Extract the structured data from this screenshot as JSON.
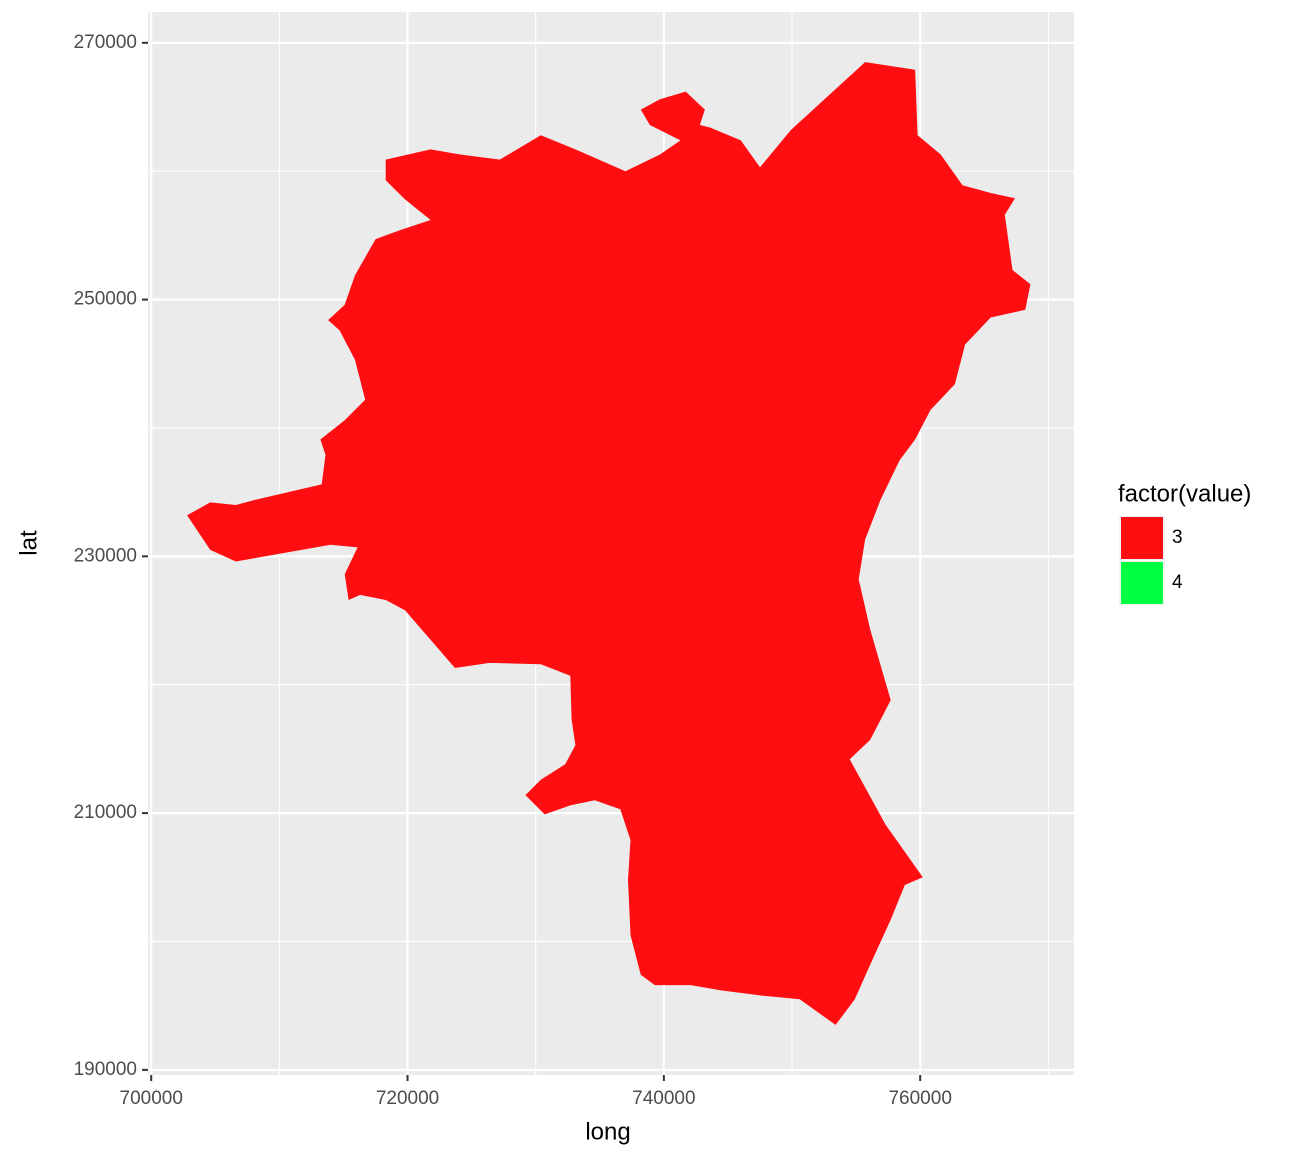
{
  "chart_data": {
    "type": "polygon",
    "x_label": "long",
    "y_label": "lat",
    "legend_title": "factor(value)",
    "xlim": [
      699750,
      772000
    ],
    "ylim": [
      189600,
      272400
    ],
    "xticks": [
      700000,
      720000,
      740000,
      760000
    ],
    "yticks": [
      190000,
      210000,
      230000,
      250000,
      270000
    ],
    "x_minor_ticks": [
      710000,
      730000,
      750000,
      770000
    ],
    "y_minor_ticks": [
      200000,
      220000,
      240000,
      260000
    ],
    "grid": true,
    "legend": "right",
    "series": [
      {
        "name": "3",
        "color": "#ff0d10",
        "x": [
          702800,
          704600,
          706600,
          708100,
          713300,
          713600,
          713200,
          715100,
          716700,
          715900,
          714700,
          713800,
          715100,
          715900,
          717500,
          719400,
          721800,
          719800,
          718300,
          718300,
          721800,
          724100,
          727200,
          730400,
          733100,
          737000,
          739700,
          741300,
          738900,
          738200,
          739700,
          741700,
          743200,
          742800,
          743600,
          746000,
          747500,
          749900,
          755700,
          759600,
          759800,
          761600,
          763300,
          765500,
          767400,
          766600,
          767200,
          768600,
          768200,
          765500,
          763500,
          762700,
          760800,
          759600,
          758400,
          756900,
          755700,
          755200,
          756100,
          757700,
          756100,
          754500,
          757300,
          760200,
          758800,
          757700,
          756100,
          754900,
          753400,
          750600,
          747500,
          744400,
          742100,
          739300,
          738200,
          737400,
          737200,
          737400,
          736600,
          734600,
          732700,
          730700,
          729200,
          730400,
          732300,
          733100,
          732800,
          732700,
          730400,
          726400,
          723700,
          719800,
          718300,
          716300,
          715400,
          715100,
          716100,
          714000,
          706600,
          704600
        ],
        "y": [
          233200,
          234200,
          234000,
          234400,
          235600,
          237900,
          239100,
          240600,
          242200,
          245300,
          247600,
          248400,
          249600,
          251900,
          254700,
          255400,
          256200,
          257800,
          259300,
          260900,
          261700,
          261300,
          260900,
          262800,
          261700,
          260000,
          261300,
          262400,
          263600,
          264800,
          265600,
          266200,
          264800,
          263600,
          263400,
          262400,
          260300,
          263200,
          268500,
          267900,
          262800,
          261300,
          258900,
          258300,
          257900,
          256600,
          252300,
          251200,
          249200,
          248600,
          246500,
          243400,
          241400,
          239100,
          237500,
          234400,
          231300,
          228200,
          224300,
          218800,
          215700,
          214200,
          209100,
          205000,
          204400,
          201700,
          198200,
          195500,
          193500,
          195500,
          195800,
          196200,
          196600,
          196600,
          197400,
          200500,
          204800,
          207900,
          210300,
          211000,
          210600,
          209900,
          211400,
          212600,
          213800,
          215300,
          217300,
          220700,
          221600,
          221700,
          221300,
          225800,
          226600,
          227000,
          226600,
          228600,
          230700,
          230900,
          229600,
          230500
        ]
      },
      {
        "name": "4",
        "color": "#00ff40",
        "x": [],
        "y": []
      }
    ]
  }
}
